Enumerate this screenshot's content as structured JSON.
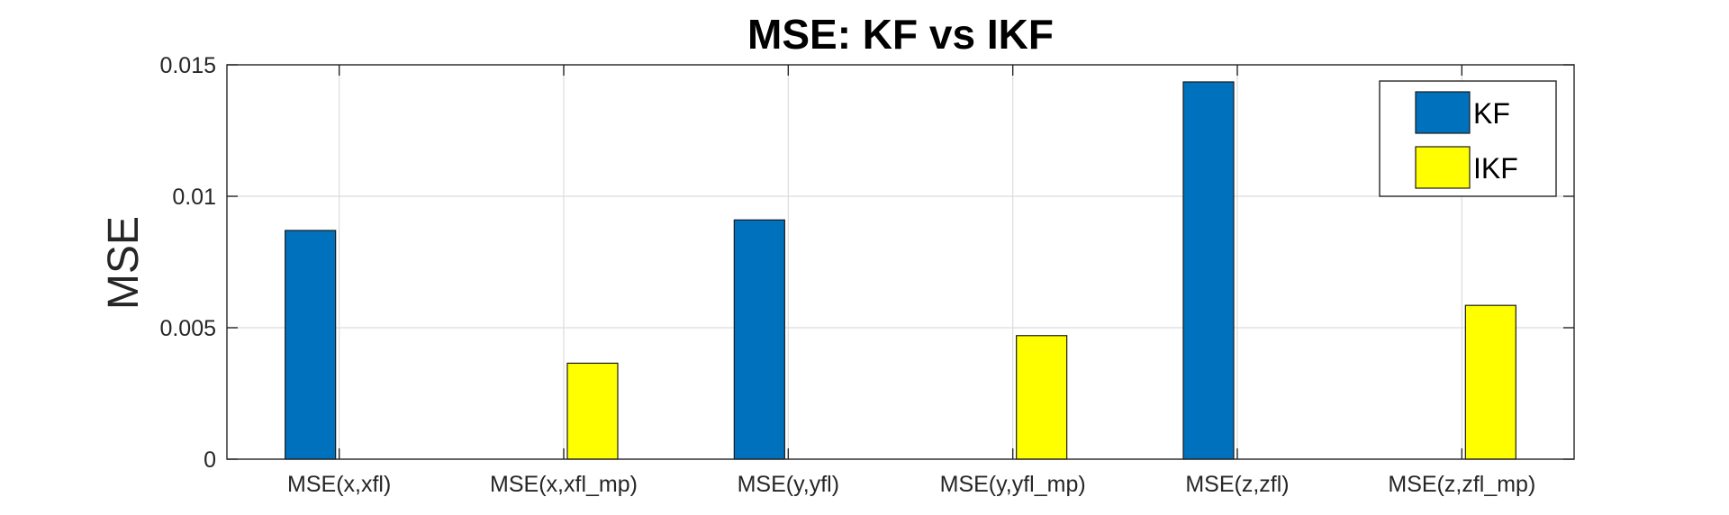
{
  "chart_data": {
    "type": "bar",
    "title": "MSE: KF vs IKF",
    "xlabel": "",
    "ylabel": "MSE",
    "ylim": [
      0,
      0.015
    ],
    "yticks": [
      0,
      0.005,
      0.01,
      0.015
    ],
    "ytick_labels": [
      "0",
      "0.005",
      "0.01",
      "0.015"
    ],
    "grid": true,
    "legend_position": "top-right",
    "categories": [
      "MSE(x,xfl)",
      "MSE(x,xfl_mp)",
      "MSE(y,yfl)",
      "MSE(y,yfl_mp)",
      "MSE(z,zfl)",
      "MSE(z,zfl_mp)"
    ],
    "series": [
      {
        "name": "KF",
        "color": "#0072BD",
        "values": [
          0.0087,
          0,
          0.0091,
          0,
          0.01435,
          0
        ]
      },
      {
        "name": "IKF",
        "color": "#FFFF00",
        "values": [
          0,
          0.00365,
          0,
          0.0047,
          0,
          0.00585
        ]
      }
    ]
  }
}
